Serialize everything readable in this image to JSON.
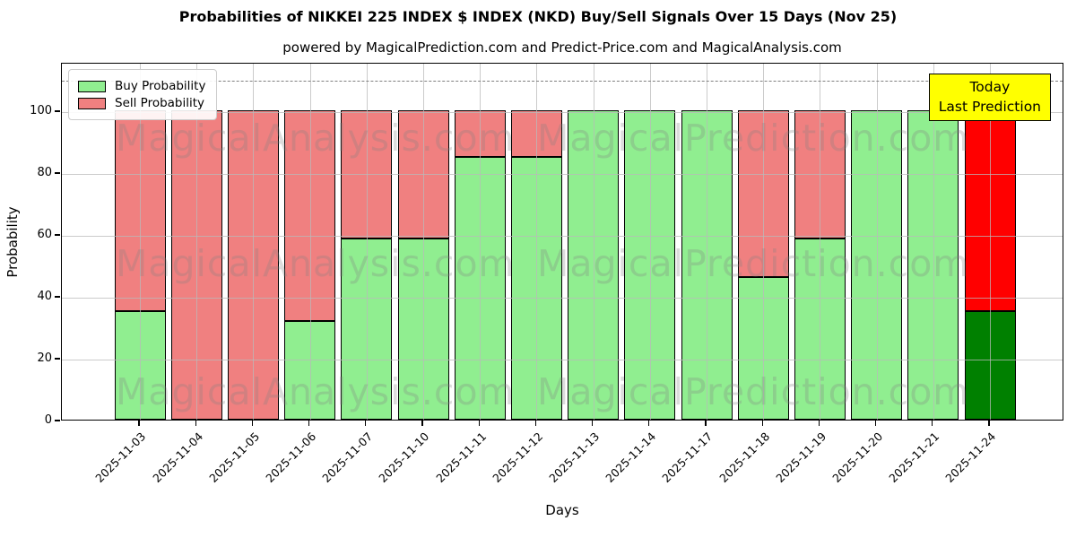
{
  "title": "Probabilities of NIKKEI 225 INDEX $ INDEX (NKD) Buy/Sell Signals Over 15 Days (Nov 25)",
  "subtitle": "powered by MagicalPrediction.com and Predict-Price.com and MagicalAnalysis.com",
  "legend": {
    "buy_label": "Buy Probability",
    "sell_label": "Sell Probability"
  },
  "annotation_box": {
    "line1": "Today",
    "line2": "Last Prediction",
    "bg_color": "#ffff00"
  },
  "axes": {
    "xlabel": "Days",
    "ylabel": "Probability",
    "yticks": [
      0,
      20,
      40,
      60,
      80,
      100
    ],
    "ylim": [
      0,
      115.6
    ],
    "dashed_line_y": 110,
    "grid": "on"
  },
  "colors": {
    "buy": "#90ee90",
    "sell": "#f08080",
    "today_buy": "#008000",
    "today_sell": "#ff0000",
    "bar_edge": "#000000",
    "dashed_line": "#7f7f7f",
    "watermark": "rgba(128,128,128,0.28)"
  },
  "watermarks": {
    "left_text": "MagicalAnalysis.com",
    "right_text": "MagicalPrediction.com"
  },
  "chart_data": {
    "type": "bar",
    "stacked": true,
    "title": "Probabilities of NIKKEI 225 INDEX $ INDEX (NKD) Buy/Sell Signals Over 15 Days (Nov 25)",
    "xlabel": "Days",
    "ylabel": "Probability",
    "ylim": [
      0,
      115.6
    ],
    "legend_position": "upper left",
    "categories": [
      "2025-11-03",
      "2025-11-04",
      "2025-11-05",
      "2025-11-06",
      "2025-11-07",
      "2025-11-10",
      "2025-11-11",
      "2025-11-12",
      "2025-11-13",
      "2025-11-14",
      "2025-11-17",
      "2025-11-18",
      "2025-11-19",
      "2025-11-20",
      "2025-11-21",
      "2025-11-24"
    ],
    "series": [
      {
        "name": "Buy Probability",
        "color": "#90ee90",
        "values": [
          35,
          0,
          0,
          32,
          58.5,
          58.5,
          85,
          85,
          100,
          100,
          100,
          46,
          58.5,
          100,
          100,
          35
        ]
      },
      {
        "name": "Sell Probability",
        "color": "#f08080",
        "values": [
          65,
          100,
          100,
          68,
          41.5,
          41.5,
          15,
          15,
          0,
          0,
          0,
          54,
          41.5,
          0,
          0,
          65
        ]
      }
    ],
    "highlighted_last_bar": {
      "category": "2025-11-24",
      "buy_color": "#008000",
      "sell_color": "#ff0000",
      "label": "Today / Last Prediction"
    }
  }
}
